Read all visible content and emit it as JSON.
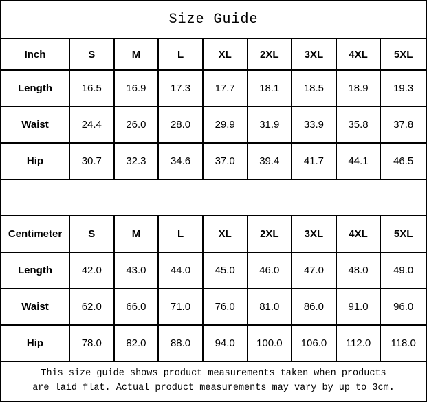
{
  "title": "Size Guide",
  "colors": {
    "border": "#000000",
    "background": "#ffffff",
    "text": "#000000"
  },
  "chart_data": [
    {
      "type": "table",
      "unit_label": "Inch",
      "sizes": [
        "S",
        "M",
        "L",
        "XL",
        "2XL",
        "3XL",
        "4XL",
        "5XL"
      ],
      "rows": [
        {
          "label": "Length",
          "values": [
            "16.5",
            "16.9",
            "17.3",
            "17.7",
            "18.1",
            "18.5",
            "18.9",
            "19.3"
          ]
        },
        {
          "label": "Waist",
          "values": [
            "24.4",
            "26.0",
            "28.0",
            "29.9",
            "31.9",
            "33.9",
            "35.8",
            "37.8"
          ]
        },
        {
          "label": "Hip",
          "values": [
            "30.7",
            "32.3",
            "34.6",
            "37.0",
            "39.4",
            "41.7",
            "44.1",
            "46.5"
          ]
        }
      ]
    },
    {
      "type": "table",
      "unit_label": "Centimeter",
      "sizes": [
        "S",
        "M",
        "L",
        "XL",
        "2XL",
        "3XL",
        "4XL",
        "5XL"
      ],
      "rows": [
        {
          "label": "Length",
          "values": [
            "42.0",
            "43.0",
            "44.0",
            "45.0",
            "46.0",
            "47.0",
            "48.0",
            "49.0"
          ]
        },
        {
          "label": "Waist",
          "values": [
            "62.0",
            "66.0",
            "71.0",
            "76.0",
            "81.0",
            "86.0",
            "91.0",
            "96.0"
          ]
        },
        {
          "label": "Hip",
          "values": [
            "78.0",
            "82.0",
            "88.0",
            "94.0",
            "100.0",
            "106.0",
            "112.0",
            "118.0"
          ]
        }
      ]
    }
  ],
  "footer": {
    "line1": "This size guide shows product measurements taken when products",
    "line2": "are laid flat. Actual product measurements may vary by up to 3cm."
  }
}
